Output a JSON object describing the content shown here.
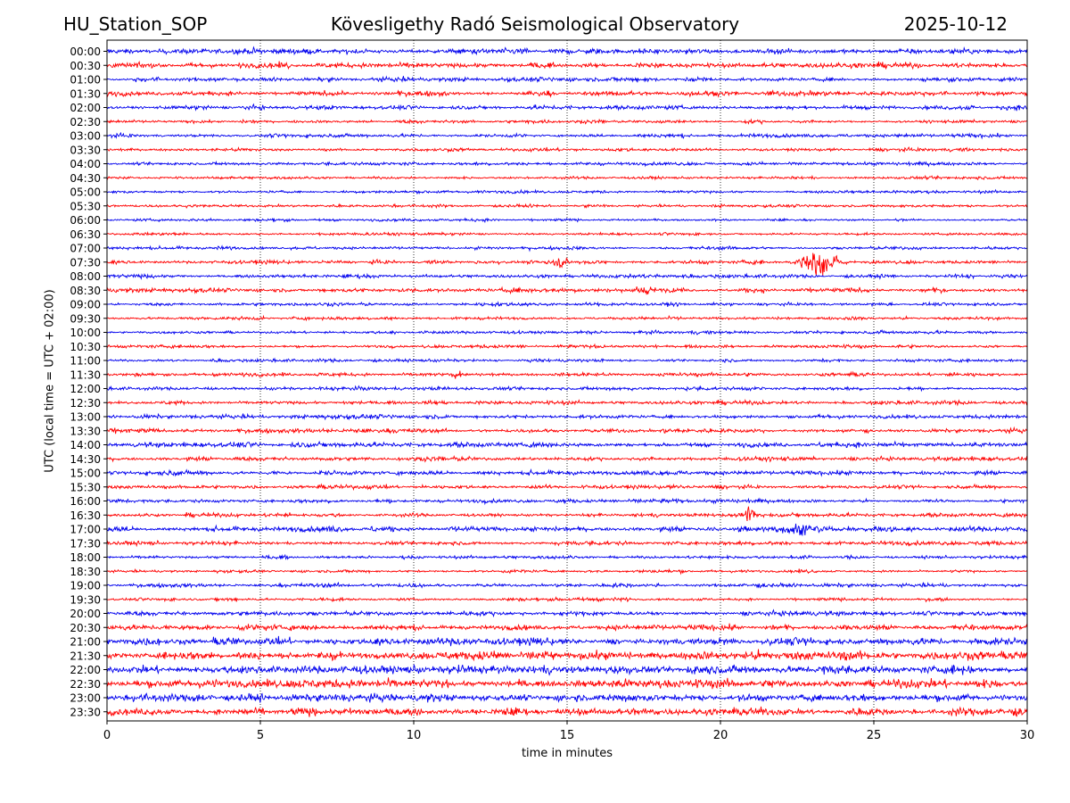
{
  "header": {
    "station": "HU_Station_SOP",
    "title": "Köveslig­ethy Radó Seismological Observatory",
    "date": "2025-10-12"
  },
  "chart_data": {
    "type": "line",
    "title": "Köveslig­ethy Radó Seismological Observatory",
    "xlabel": "time in minutes",
    "ylabel": "UTC (local time = UTC + 02:00)",
    "xlim": [
      0,
      30
    ],
    "x_ticks": [
      0,
      5,
      10,
      15,
      20,
      25,
      30
    ],
    "grid": "vertical dotted at x ticks",
    "colors": {
      "even": "#0000ee",
      "odd": "#ff0000"
    },
    "row_labels": [
      "00:00",
      "00:30",
      "01:00",
      "01:30",
      "02:00",
      "02:30",
      "03:00",
      "03:30",
      "04:00",
      "04:30",
      "05:00",
      "05:30",
      "06:00",
      "06:30",
      "07:00",
      "07:30",
      "08:00",
      "08:30",
      "09:00",
      "09:30",
      "10:00",
      "10:30",
      "11:00",
      "11:30",
      "12:00",
      "12:30",
      "13:00",
      "13:30",
      "14:00",
      "14:30",
      "15:00",
      "15:30",
      "16:00",
      "16:30",
      "17:00",
      "17:30",
      "18:00",
      "18:30",
      "19:00",
      "19:30",
      "20:00",
      "20:30",
      "21:00",
      "21:30",
      "22:00",
      "22:30",
      "23:00",
      "23:30"
    ],
    "noise_level": [
      1.0,
      1.0,
      0.8,
      0.9,
      0.8,
      0.6,
      0.7,
      0.6,
      0.6,
      0.5,
      0.5,
      0.5,
      0.5,
      0.5,
      0.6,
      0.7,
      0.7,
      0.8,
      0.6,
      0.6,
      0.6,
      0.6,
      0.6,
      0.7,
      0.7,
      0.7,
      0.8,
      0.8,
      0.9,
      0.8,
      0.8,
      0.7,
      0.7,
      0.7,
      1.0,
      0.8,
      0.6,
      0.6,
      0.7,
      0.6,
      0.8,
      1.0,
      1.4,
      1.6,
      1.7,
      1.6,
      1.5,
      1.4
    ],
    "events": [
      {
        "row": "07:30",
        "minute": 23.2,
        "amplitude": 12,
        "duration_min": 1.8
      },
      {
        "row": "07:30",
        "minute": 14.8,
        "amplitude": 4,
        "duration_min": 1.0
      },
      {
        "row": "08:30",
        "minute": 17.5,
        "amplitude": 3.5,
        "duration_min": 1.2
      },
      {
        "row": "16:30",
        "minute": 21.0,
        "amplitude": 6,
        "duration_min": 0.8
      },
      {
        "row": "17:00",
        "minute": 22.5,
        "amplitude": 4,
        "duration_min": 3.0
      },
      {
        "row": "11:30",
        "minute": 11.4,
        "amplitude": 3,
        "duration_min": 0.5
      }
    ]
  }
}
